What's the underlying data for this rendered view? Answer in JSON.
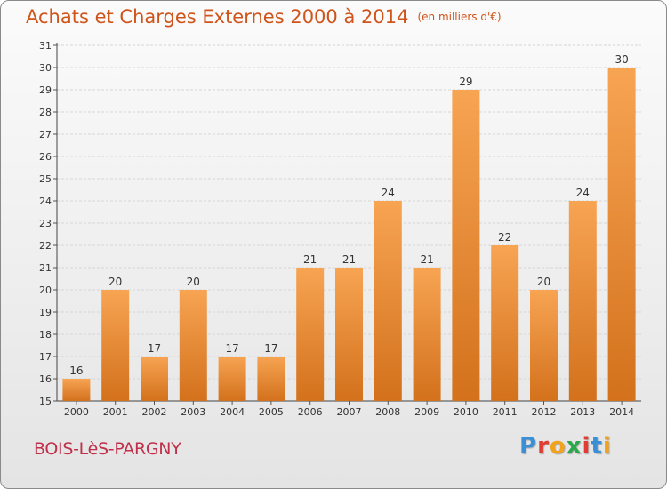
{
  "header": {
    "title": "Achats et Charges Externes 2000 à 2014",
    "unit": "(en milliers d'€)"
  },
  "footer": {
    "commune": "BOIS-LèS-PARGNY",
    "logo_text": "Proxiti",
    "logo_colors": [
      "#3a8fd6",
      "#e23b2f",
      "#f2a21b",
      "#2aa84a",
      "#e23b2f",
      "#3a8fd6",
      "#f2a21b"
    ]
  },
  "colors": {
    "bar_top": "#f7a453",
    "bar_bottom": "#d3711c",
    "title": "#d0541a",
    "commune": "#c0304a"
  },
  "chart_data": {
    "type": "bar",
    "categories": [
      "2000",
      "2001",
      "2002",
      "2003",
      "2004",
      "2005",
      "2006",
      "2007",
      "2008",
      "2009",
      "2010",
      "2011",
      "2012",
      "2013",
      "2014"
    ],
    "values": [
      16,
      20,
      17,
      20,
      17,
      17,
      21,
      21,
      24,
      21,
      29,
      22,
      20,
      24,
      30
    ],
    "ylim": [
      15,
      31
    ],
    "yticks": [
      15,
      16,
      17,
      18,
      19,
      20,
      21,
      22,
      23,
      24,
      25,
      26,
      27,
      28,
      29,
      30,
      31
    ],
    "grid": true,
    "data_labels": true
  }
}
